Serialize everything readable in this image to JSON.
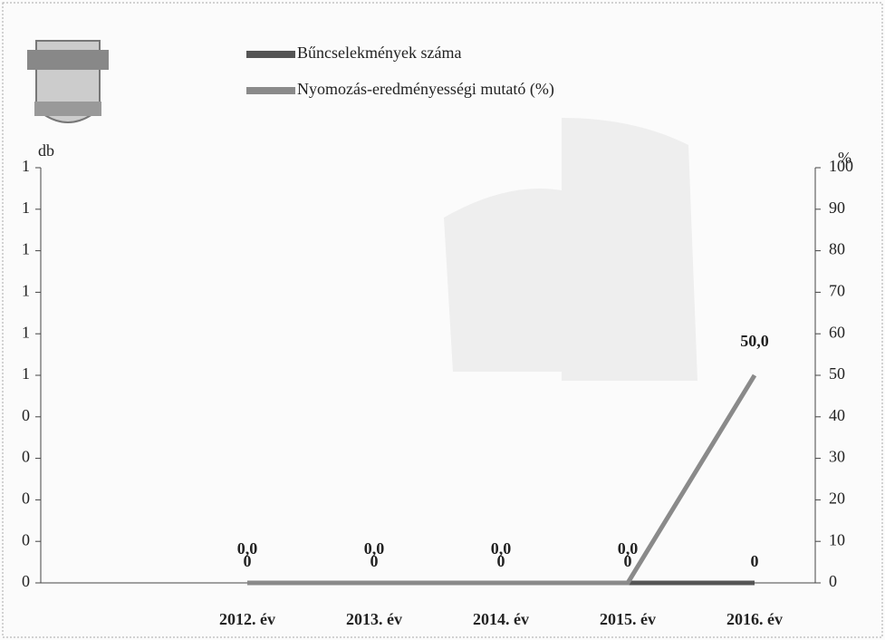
{
  "chart_data": {
    "type": "line",
    "y_unit": "db",
    "y2_unit": "%",
    "categories": [
      "2012. év",
      "2013. év",
      "2014. év",
      "2015. év",
      "2016. év"
    ],
    "series": [
      {
        "name": "Bűncselekmények száma",
        "color": "#555555",
        "values": [
          0,
          0,
          0,
          0,
          0
        ]
      },
      {
        "name": "Nyomozás-eredményességi mutató (%)",
        "color": "#8a8a8a",
        "axis": "y2",
        "values": [
          0,
          0,
          0,
          0,
          50
        ],
        "value_labels": [
          "0,0",
          "0,0",
          "0,0",
          "0,0",
          "50,0"
        ]
      }
    ],
    "ylim": [
      0,
      1
    ],
    "yticks": [
      0,
      {
        "value": 0.1,
        "label": "0"
      },
      {
        "value": 0.2,
        "label": "0"
      },
      {
        "value": 0.3,
        "label": "0"
      },
      {
        "value": 0.4,
        "label": "0"
      },
      {
        "value": 0.5,
        "label": "1"
      },
      {
        "value": 0.6,
        "label": "1"
      },
      {
        "value": 0.7,
        "label": "1"
      },
      {
        "value": 0.8,
        "label": "1"
      },
      {
        "value": 0.9,
        "label": "1"
      },
      1
    ],
    "y2lim": [
      0,
      100
    ],
    "y2ticks": [
      0,
      10,
      20,
      30,
      40,
      50,
      60,
      70,
      80,
      90,
      100
    ],
    "legend": "top"
  }
}
